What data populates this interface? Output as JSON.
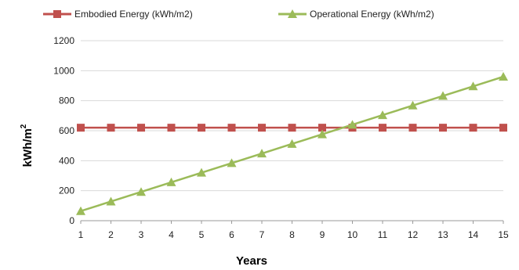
{
  "chart_data": {
    "type": "line",
    "title": "",
    "xlabel": "Years",
    "ylabel": "kWh/m",
    "ylabel_superscript": "2",
    "x": [
      1,
      2,
      3,
      4,
      5,
      6,
      7,
      8,
      9,
      10,
      11,
      12,
      13,
      14,
      15
    ],
    "ylim": [
      0,
      1200
    ],
    "yticks": [
      0,
      200,
      400,
      600,
      800,
      1000,
      1200
    ],
    "grid": "horizontal",
    "legend_position": "top",
    "series": [
      {
        "name": "Embodied Energy (kWh/m2)",
        "color": "#c0504d",
        "marker": "square",
        "values": [
          620,
          620,
          620,
          620,
          620,
          620,
          620,
          620,
          620,
          620,
          620,
          620,
          620,
          620,
          620
        ]
      },
      {
        "name": "Operational Energy (kWh/m2)",
        "color": "#9bbb59",
        "marker": "triangle",
        "values": [
          64,
          128,
          192,
          256,
          320,
          384,
          448,
          512,
          576,
          640,
          704,
          768,
          832,
          896,
          960
        ]
      }
    ]
  }
}
